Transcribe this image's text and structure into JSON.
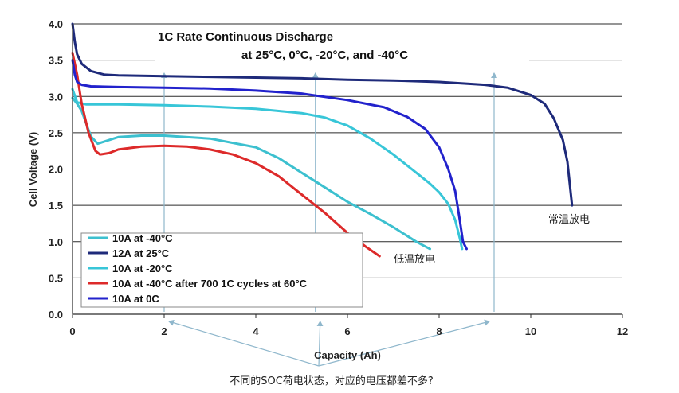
{
  "chart_data": {
    "type": "line",
    "title": [
      "1C Rate Continuous Discharge",
      "at 25°C, 0°C, -20°C, and -40°C"
    ],
    "xlabel": "Capacity (Ah)",
    "ylabel": "Cell Voltage (V)",
    "xlim": [
      0,
      12
    ],
    "ylim": [
      0,
      4
    ],
    "xticks": [
      0,
      2,
      4,
      6,
      8,
      10,
      12
    ],
    "yticks": [
      0.0,
      0.5,
      1.0,
      1.5,
      2.0,
      2.5,
      3.0,
      3.5,
      4.0
    ],
    "xtick_labels": [
      "0",
      "2",
      "4",
      "6",
      "8",
      "10",
      "12"
    ],
    "ytick_labels": [
      "0.0",
      "0.5",
      "1.0",
      "1.5",
      "2.0",
      "2.5",
      "3.0",
      "3.5",
      "4.0"
    ],
    "grid": "horizontal",
    "series": [
      {
        "name": "10A at -40°C",
        "color": "#3cc0cf",
        "x": [
          0.0,
          0.1,
          0.2,
          0.4,
          0.55,
          0.7,
          1.0,
          1.5,
          2.0,
          3.0,
          4.0,
          4.5,
          5.0,
          5.5,
          6.0,
          6.5,
          7.0,
          7.5,
          7.8
        ],
        "y": [
          2.98,
          2.9,
          2.8,
          2.45,
          2.35,
          2.38,
          2.44,
          2.46,
          2.46,
          2.42,
          2.3,
          2.15,
          1.95,
          1.75,
          1.55,
          1.38,
          1.2,
          1.0,
          0.9
        ]
      },
      {
        "name": "12A at 25°C",
        "color": "#1e2a7a",
        "x": [
          0.0,
          0.05,
          0.1,
          0.2,
          0.4,
          0.7,
          1.0,
          2.0,
          3.0,
          4.0,
          5.0,
          6.0,
          7.0,
          8.0,
          9.0,
          9.5,
          10.0,
          10.3,
          10.5,
          10.7,
          10.8,
          10.85,
          10.9
        ],
        "y": [
          4.0,
          3.75,
          3.58,
          3.45,
          3.35,
          3.3,
          3.29,
          3.28,
          3.27,
          3.26,
          3.25,
          3.23,
          3.22,
          3.2,
          3.16,
          3.12,
          3.02,
          2.9,
          2.7,
          2.4,
          2.1,
          1.8,
          1.5
        ]
      },
      {
        "name": "10A at -20°C",
        "color": "#38c6d8",
        "x": [
          0.0,
          0.1,
          0.3,
          0.5,
          1.0,
          2.0,
          3.0,
          4.0,
          5.0,
          5.5,
          6.0,
          6.5,
          7.0,
          7.5,
          7.8,
          8.0,
          8.2,
          8.35,
          8.45,
          8.5
        ],
        "y": [
          3.1,
          2.92,
          2.89,
          2.89,
          2.89,
          2.88,
          2.86,
          2.83,
          2.77,
          2.71,
          2.6,
          2.42,
          2.2,
          1.95,
          1.8,
          1.68,
          1.52,
          1.3,
          1.05,
          0.9
        ]
      },
      {
        "name": "10A at -40°C after 700 1C cycles at 60°C",
        "color": "#dd2a2a",
        "x": [
          0.0,
          0.1,
          0.2,
          0.35,
          0.5,
          0.6,
          0.8,
          1.0,
          1.5,
          2.0,
          2.5,
          3.0,
          3.5,
          4.0,
          4.5,
          5.0,
          5.5,
          6.0,
          6.4,
          6.7
        ],
        "y": [
          3.6,
          3.3,
          2.9,
          2.5,
          2.25,
          2.2,
          2.22,
          2.27,
          2.31,
          2.32,
          2.31,
          2.27,
          2.2,
          2.08,
          1.9,
          1.65,
          1.4,
          1.12,
          0.93,
          0.8
        ]
      },
      {
        "name": "10A at 0C",
        "color": "#2222cc",
        "x": [
          0.0,
          0.05,
          0.1,
          0.2,
          0.4,
          1.0,
          2.0,
          3.0,
          4.0,
          5.0,
          6.0,
          6.8,
          7.3,
          7.7,
          8.0,
          8.2,
          8.35,
          8.45,
          8.52,
          8.6
        ],
        "y": [
          3.5,
          3.3,
          3.2,
          3.16,
          3.14,
          3.13,
          3.12,
          3.11,
          3.08,
          3.04,
          2.95,
          2.85,
          2.72,
          2.55,
          2.3,
          2.0,
          1.7,
          1.3,
          1.0,
          0.9
        ]
      }
    ],
    "legend_position": "bottom-left",
    "annotations": {
      "room_temp_label": "常温放电",
      "low_temp_label": "低温放电",
      "caption": "不同的SOC荷电状态，对应的电压都差不多?"
    },
    "reference_markers": [
      {
        "x": 2.0,
        "label": ""
      },
      {
        "x": 5.3,
        "label": ""
      },
      {
        "x": 9.2,
        "label": ""
      }
    ]
  }
}
